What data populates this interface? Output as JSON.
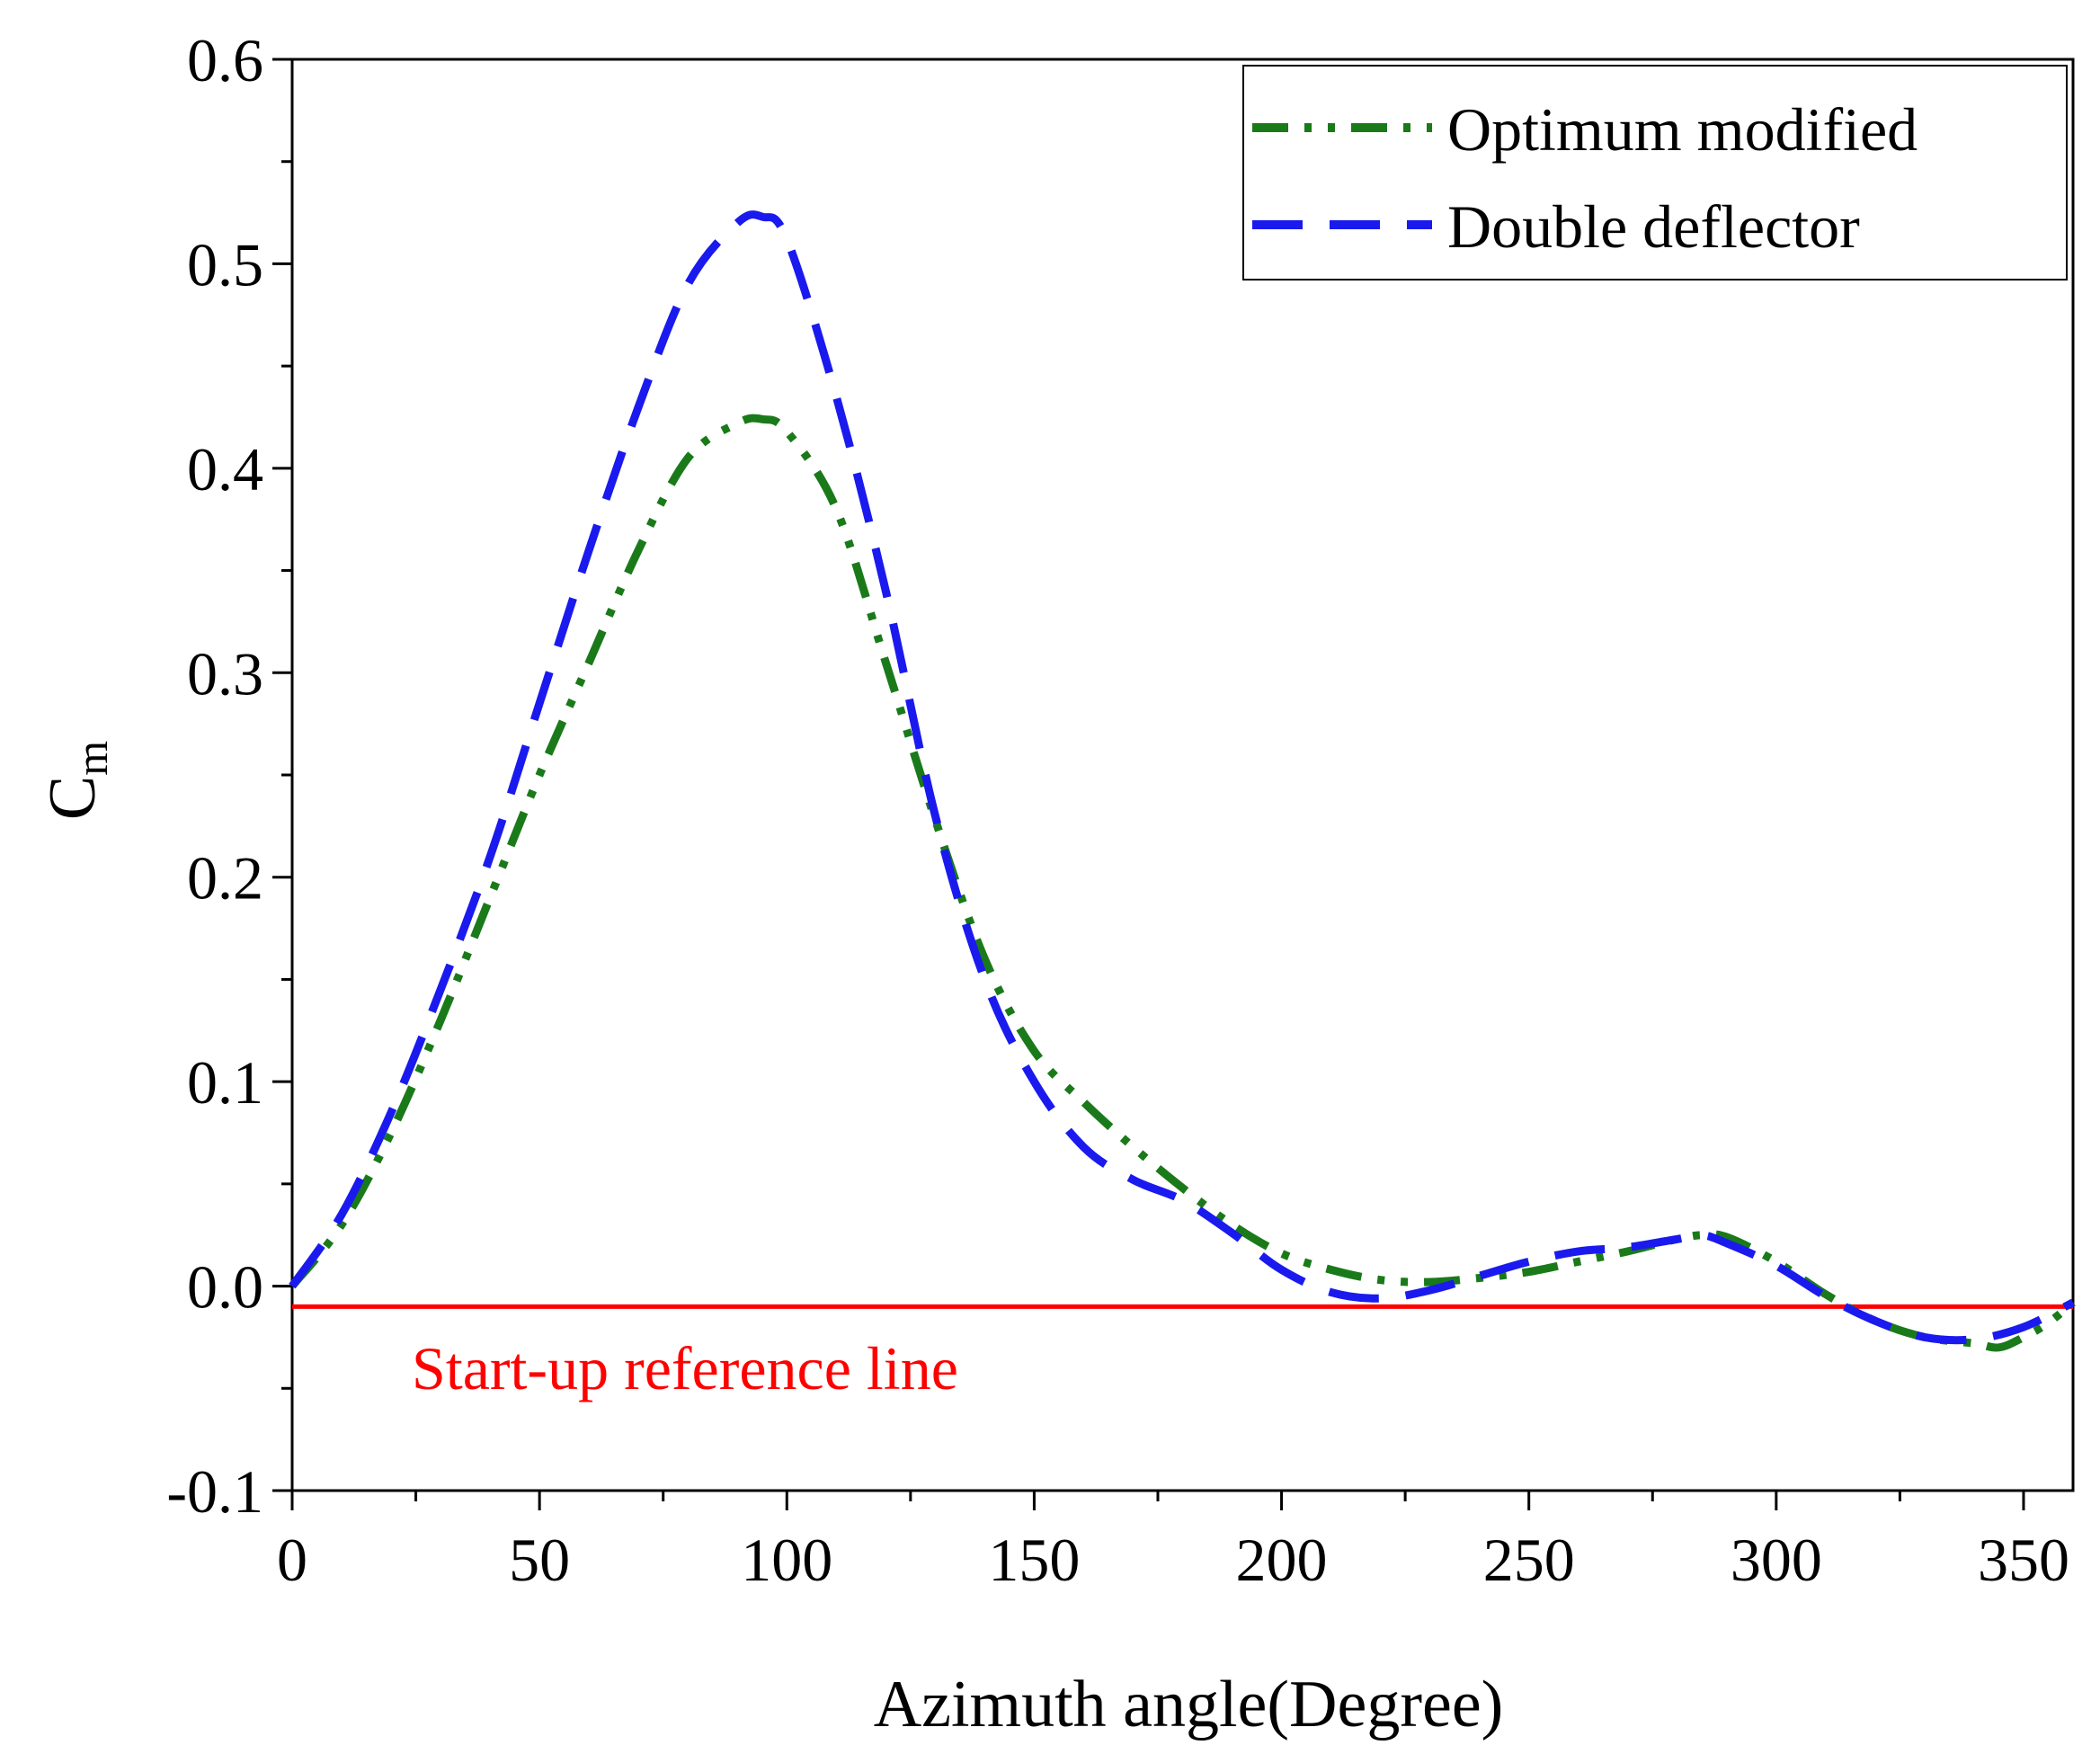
{
  "chart_data": {
    "type": "line",
    "xlabel": "Azimuth angle(Degree)",
    "ylabel": "C",
    "ylabel_sub": "m",
    "xlim": [
      0,
      360
    ],
    "ylim": [
      -0.1,
      0.6
    ],
    "x_ticks": [
      0,
      50,
      100,
      150,
      200,
      250,
      300,
      350
    ],
    "y_ticks": [
      -0.1,
      0.0,
      0.1,
      0.2,
      0.3,
      0.4,
      0.5,
      0.6
    ],
    "y_tick_labels": [
      "-0.1",
      "0.0",
      "0.1",
      "0.2",
      "0.3",
      "0.4",
      "0.5",
      "0.6"
    ],
    "x_tick_labels": [
      "0",
      "50",
      "100",
      "150",
      "200",
      "250",
      "300",
      "350"
    ],
    "grid": false,
    "legend_position": "top-right",
    "series": [
      {
        "name": "Optimum modified",
        "color": "#1a7a1a",
        "style": "dash-dot-dot",
        "x": [
          0,
          10,
          20,
          30,
          40,
          50,
          60,
          70,
          80,
          90,
          95,
          100,
          110,
          120,
          130,
          140,
          150,
          160,
          170,
          180,
          190,
          200,
          210,
          220,
          230,
          240,
          250,
          260,
          270,
          280,
          285,
          290,
          300,
          310,
          320,
          330,
          340,
          345,
          350,
          355,
          360
        ],
        "y": [
          0.0,
          0.03,
          0.075,
          0.13,
          0.19,
          0.25,
          0.305,
          0.36,
          0.405,
          0.422,
          0.424,
          0.418,
          0.38,
          0.305,
          0.228,
          0.16,
          0.115,
          0.09,
          0.068,
          0.048,
          0.03,
          0.016,
          0.008,
          0.003,
          0.002,
          0.004,
          0.007,
          0.012,
          0.017,
          0.023,
          0.025,
          0.024,
          0.012,
          -0.004,
          -0.017,
          -0.025,
          -0.028,
          -0.03,
          -0.025,
          -0.018,
          -0.008
        ]
      },
      {
        "name": "Double deflector",
        "color": "#1a1aee",
        "style": "dash",
        "x": [
          0,
          10,
          20,
          30,
          40,
          50,
          60,
          70,
          80,
          90,
          95,
          100,
          110,
          120,
          130,
          140,
          150,
          160,
          170,
          180,
          190,
          200,
          210,
          220,
          230,
          240,
          250,
          260,
          270,
          280,
          285,
          290,
          300,
          310,
          320,
          330,
          340,
          350,
          360
        ],
        "y": [
          0.0,
          0.035,
          0.085,
          0.145,
          0.21,
          0.285,
          0.36,
          0.43,
          0.49,
          0.52,
          0.523,
          0.512,
          0.435,
          0.34,
          0.23,
          0.15,
          0.1,
          0.068,
          0.052,
          0.042,
          0.026,
          0.008,
          -0.003,
          -0.006,
          -0.002,
          0.005,
          0.012,
          0.017,
          0.019,
          0.023,
          0.025,
          0.021,
          0.01,
          -0.005,
          -0.017,
          -0.025,
          -0.026,
          -0.02,
          -0.008
        ]
      }
    ],
    "reference_line": {
      "y": -0.01,
      "color": "#ff0000",
      "label": "Start-up reference line"
    }
  }
}
